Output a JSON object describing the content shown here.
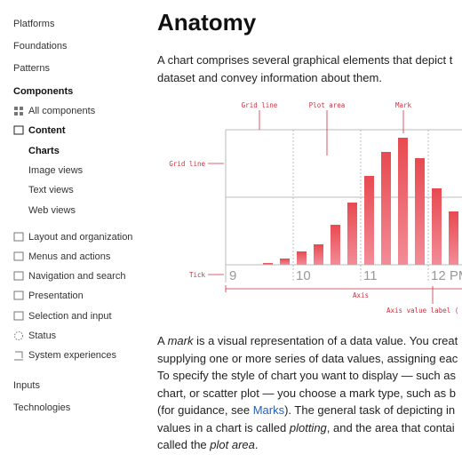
{
  "sidebar": {
    "top": [
      "Platforms",
      "Foundations",
      "Patterns"
    ],
    "section": "Components",
    "all": "All components",
    "content": "Content",
    "content_children": [
      "Charts",
      "Image views",
      "Text views",
      "Web views"
    ],
    "others": [
      "Layout and organization",
      "Menus and actions",
      "Navigation and search",
      "Presentation",
      "Selection and input",
      "Status",
      "System experiences"
    ],
    "bottom": [
      "Inputs",
      "Technologies"
    ]
  },
  "main": {
    "title": "Anatomy",
    "intro": [
      "A chart comprises several graphical elements that depict t",
      "dataset and convey information about them."
    ],
    "diagram": {
      "callouts": {
        "grid_line_top": "Grid line",
        "plot_area": "Plot area",
        "mark": "Mark",
        "grid_line_left": "Grid line",
        "tick": "Tick",
        "axis": "Axis",
        "axis_value_label": "Axis value label ("
      },
      "tick_labels": [
        "9",
        "10",
        "11",
        "12 PM"
      ]
    },
    "body": [
      [
        {
          "t": "A "
        },
        {
          "t": "mark",
          "style": "em"
        },
        {
          "t": " is a visual representation of a data value. You creat"
        }
      ],
      [
        {
          "t": "supplying one or more series of data values, assigning eac"
        }
      ],
      [
        {
          "t": "To specify the style of chart you want to display — such as"
        }
      ],
      [
        {
          "t": "chart, or scatter plot — you choose a mark type, such as b"
        }
      ],
      [
        {
          "t": "(for guidance, see "
        },
        {
          "t": "Marks",
          "style": "link"
        },
        {
          "t": "). The general task of depicting in"
        }
      ],
      [
        {
          "t": "values in a chart is called "
        },
        {
          "t": "plotting",
          "style": "em"
        },
        {
          "t": ", and the area that contai"
        }
      ],
      [
        {
          "t": "called the "
        },
        {
          "t": "plot area",
          "style": "em"
        },
        {
          "t": "."
        }
      ]
    ]
  }
}
